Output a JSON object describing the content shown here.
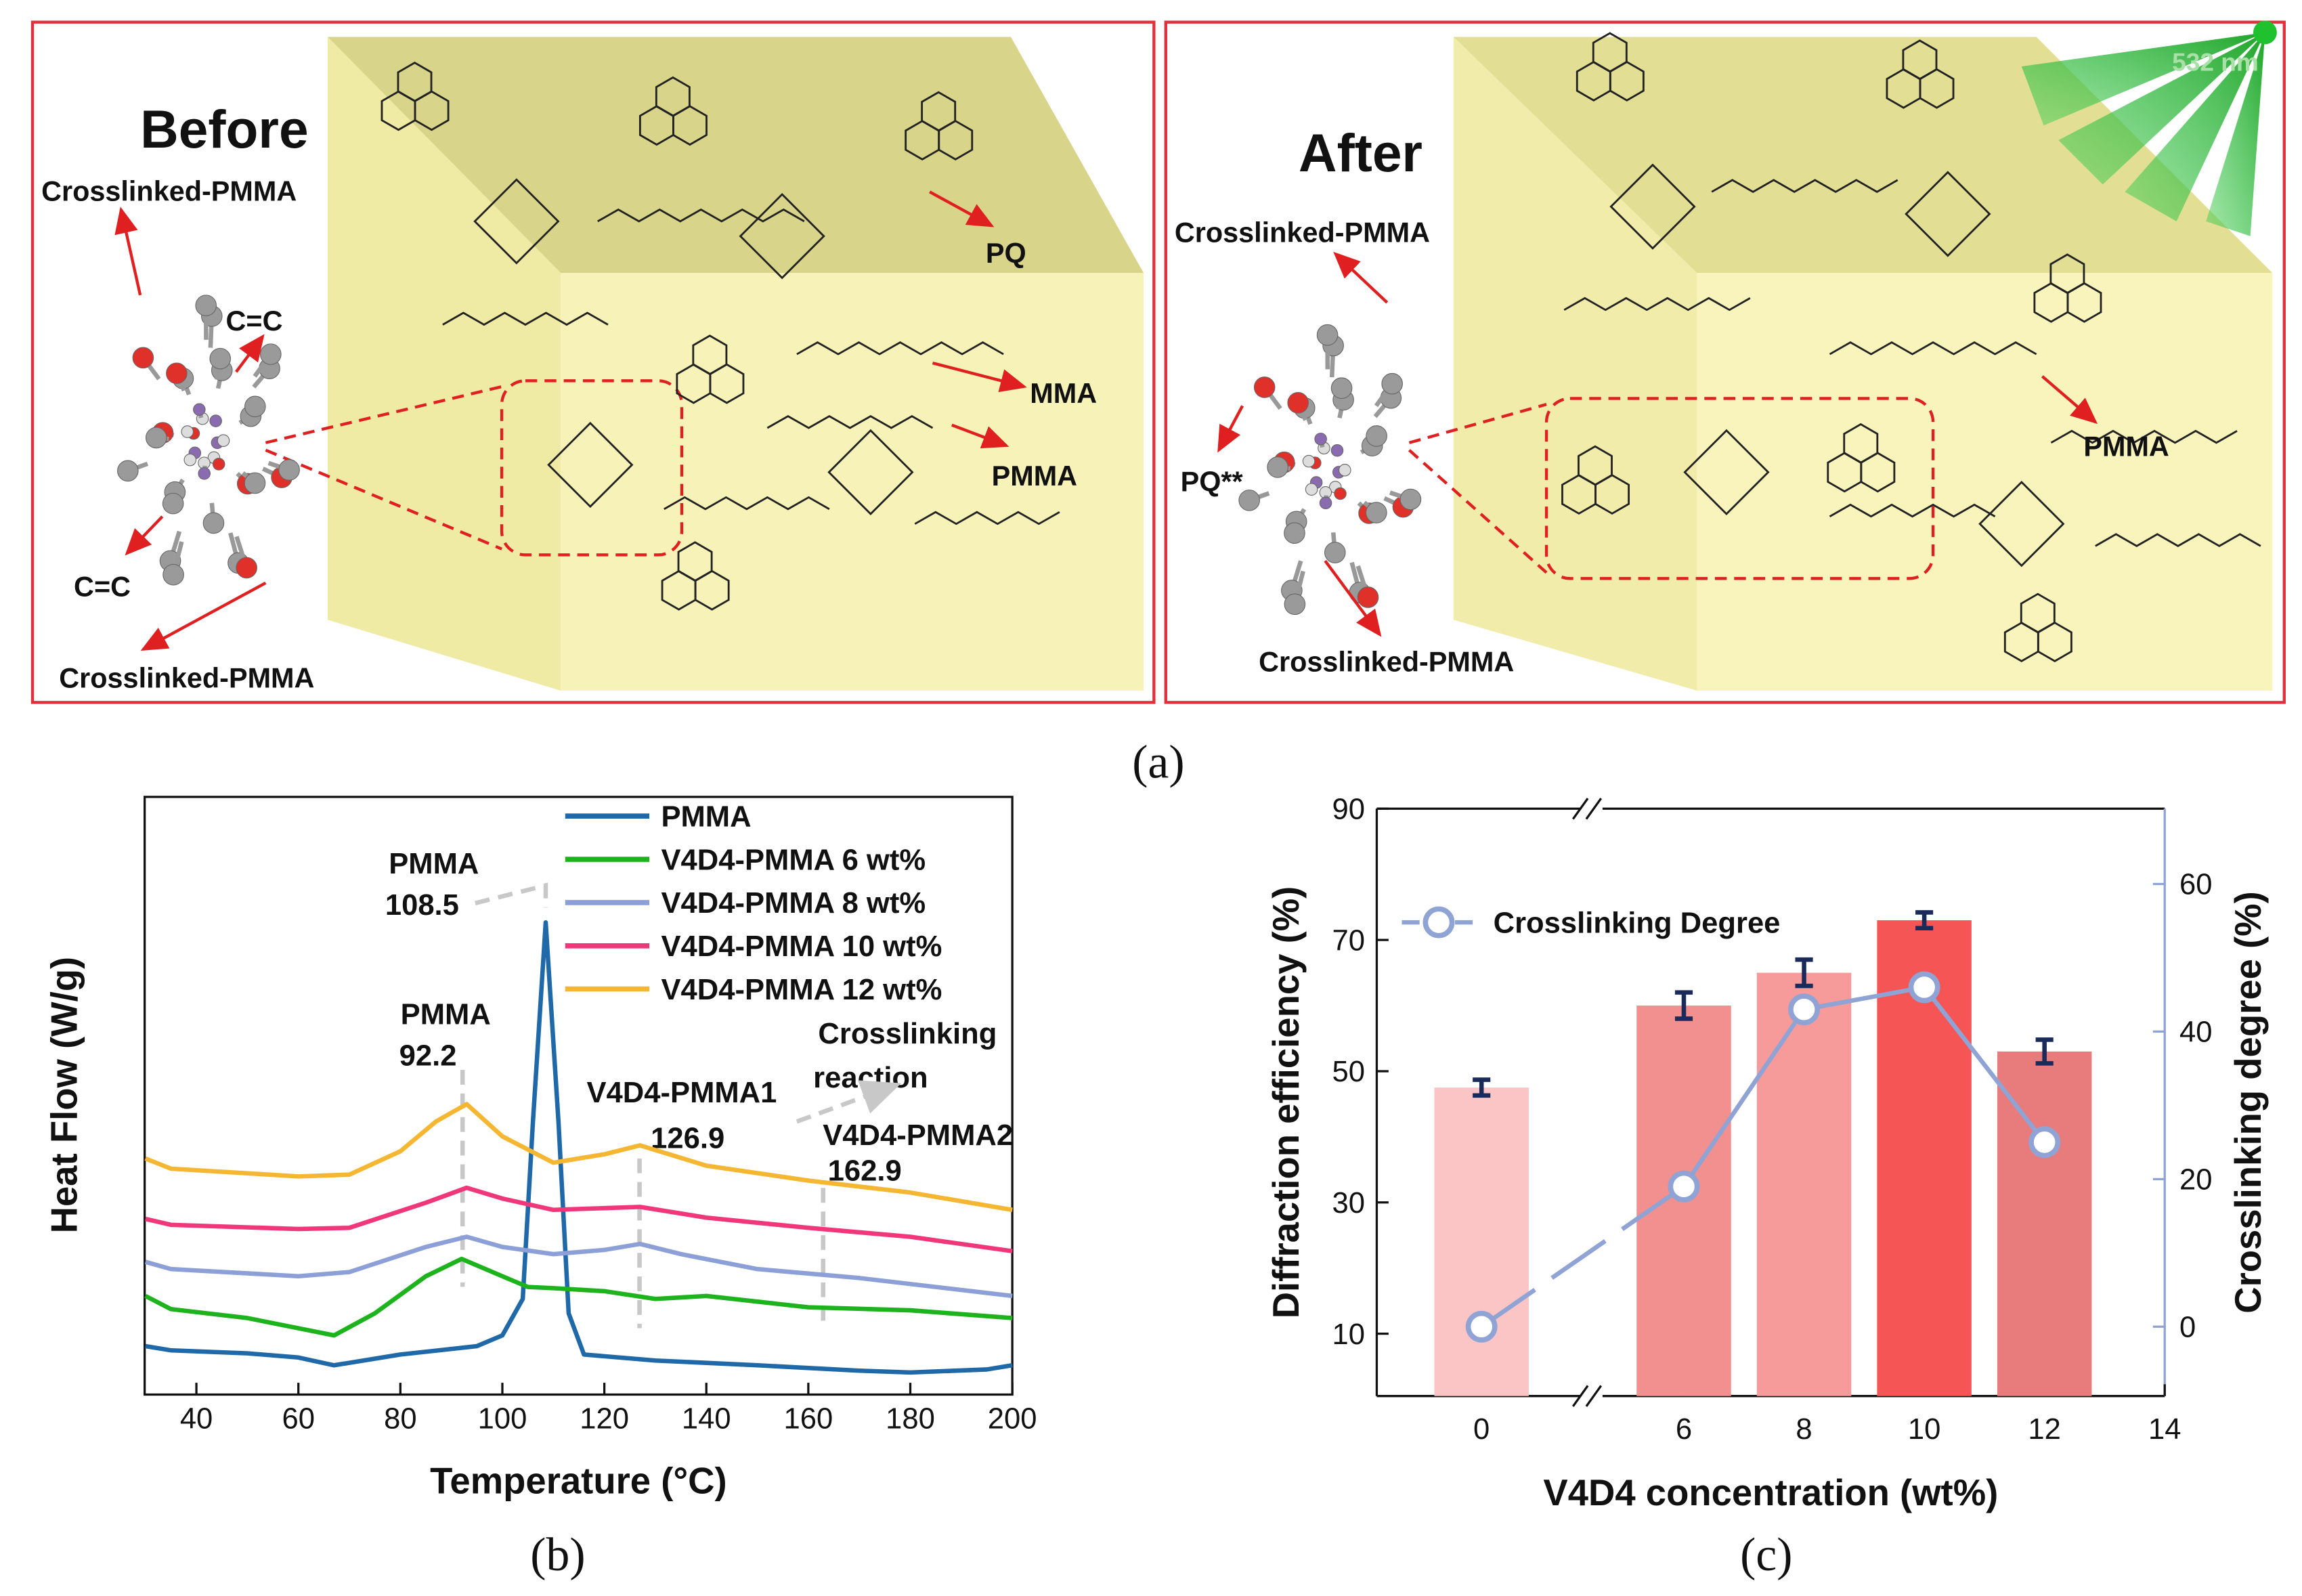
{
  "panel_a": {
    "caption": "(a)",
    "before": {
      "title": "Before",
      "labels": [
        "Crosslinked-PMMA",
        "C=C",
        "C=C",
        "Crosslinked-PMMA",
        "PQ",
        "MMA",
        "PMMA"
      ]
    },
    "after": {
      "title": "After",
      "wavelength": "532 nm",
      "labels": [
        "Crosslinked-PMMA",
        "PQ**",
        "Crosslinked-PMMA",
        "PMMA"
      ]
    }
  },
  "chart_data": [
    {
      "type": "line",
      "panel_label": "(b)",
      "x_label": "Temperature (°C)",
      "y_label": "Heat Flow (W/g)",
      "xlim": [
        30,
        200
      ],
      "xticks": [
        40,
        60,
        80,
        100,
        120,
        140,
        160,
        180,
        200
      ],
      "ylim": [
        0,
        10
      ],
      "series": [
        {
          "name": "PMMA",
          "color": "#1f69a8",
          "x": [
            30,
            35,
            50,
            60,
            67,
            80,
            95,
            100,
            104,
            106,
            108.5,
            111,
            113,
            116,
            130,
            150,
            170,
            180,
            195,
            200
          ],
          "values": [
            0.81,
            0.74,
            0.69,
            0.62,
            0.49,
            0.67,
            0.81,
            0.99,
            1.6,
            4.57,
            7.9,
            4.57,
            1.36,
            0.67,
            0.57,
            0.49,
            0.4,
            0.37,
            0.42,
            0.49
          ]
        },
        {
          "name": "V4D4-PMMA 6 wt%",
          "color": "#1db31d",
          "x": [
            30,
            35,
            50,
            60,
            67,
            75,
            85,
            92,
            100,
            105,
            110,
            120,
            130,
            140,
            160,
            180,
            200
          ],
          "values": [
            1.65,
            1.43,
            1.28,
            1.11,
            0.99,
            1.36,
            1.98,
            2.27,
            1.98,
            1.8,
            1.78,
            1.73,
            1.6,
            1.65,
            1.46,
            1.41,
            1.28
          ]
        },
        {
          "name": "V4D4-PMMA 8 wt%",
          "color": "#8c9fd6",
          "x": [
            30,
            35,
            60,
            70,
            85,
            93,
            100,
            110,
            120,
            127,
            135,
            150,
            170,
            200
          ],
          "values": [
            2.22,
            2.1,
            1.98,
            2.05,
            2.47,
            2.64,
            2.47,
            2.35,
            2.42,
            2.52,
            2.35,
            2.1,
            1.95,
            1.65
          ]
        },
        {
          "name": "V4D4-PMMA 10 wt%",
          "color": "#f0377a",
          "x": [
            30,
            35,
            60,
            70,
            85,
            93,
            100,
            110,
            127,
            140,
            160,
            180,
            200
          ],
          "values": [
            2.94,
            2.84,
            2.77,
            2.79,
            3.21,
            3.46,
            3.28,
            3.09,
            3.14,
            2.96,
            2.79,
            2.64,
            2.4
          ]
        },
        {
          "name": "V4D4-PMMA 12 wt%",
          "color": "#f5b731",
          "x": [
            30,
            35,
            60,
            70,
            80,
            87,
            93,
            100,
            110,
            120,
            127,
            140,
            160,
            180,
            200
          ],
          "values": [
            3.95,
            3.78,
            3.65,
            3.68,
            4.07,
            4.57,
            4.86,
            4.32,
            3.88,
            4.02,
            4.17,
            3.83,
            3.58,
            3.38,
            3.09
          ]
        }
      ],
      "annotations": [
        {
          "label": "PMMA",
          "value": 108.5
        },
        {
          "label": "PMMA",
          "value": 92.2
        },
        {
          "label": "V4D4-PMMA1",
          "value": 126.9
        },
        {
          "label": "V4D4-PMMA2",
          "value": 162.9
        }
      ],
      "note_lines": [
        "Crosslinking",
        "reaction"
      ],
      "note_color": "#1f7bbf"
    },
    {
      "type": "bar",
      "panel_label": "(c)",
      "x_label": "V4D4  concentration (wt%)",
      "y_label": "Diffraction efficiency (%)",
      "y2_label": "Crosslinking degree (%)",
      "x": [
        0,
        6,
        8,
        10,
        12
      ],
      "xlim": [
        -1.5,
        14
      ],
      "xbreak": [
        1.5,
        4.5
      ],
      "xticks": [
        0,
        6,
        8,
        10,
        12,
        14
      ],
      "ylim": [
        0.5,
        90
      ],
      "yticks": [
        10,
        30,
        50,
        70,
        90
      ],
      "y2lim": [
        -9.4,
        70.2
      ],
      "y2ticks": [
        0,
        20,
        40,
        60
      ],
      "y2_color": "#8fa3d4",
      "series": [
        {
          "values": [
            47.5,
            60,
            65,
            73,
            53
          ],
          "errors": [
            1.2,
            2,
            2,
            1.2,
            1.8
          ],
          "colors": [
            "#fcc5c5",
            "#f28f8f",
            "#f79a9a",
            "#f55555",
            "#e87b7b"
          ],
          "error_color": "#1a2a5a"
        },
        {
          "name": "Crosslinking Degree",
          "axis": "y2",
          "color": "#8fa3d4",
          "values": [
            0,
            19,
            43,
            46,
            25
          ]
        }
      ]
    }
  ]
}
